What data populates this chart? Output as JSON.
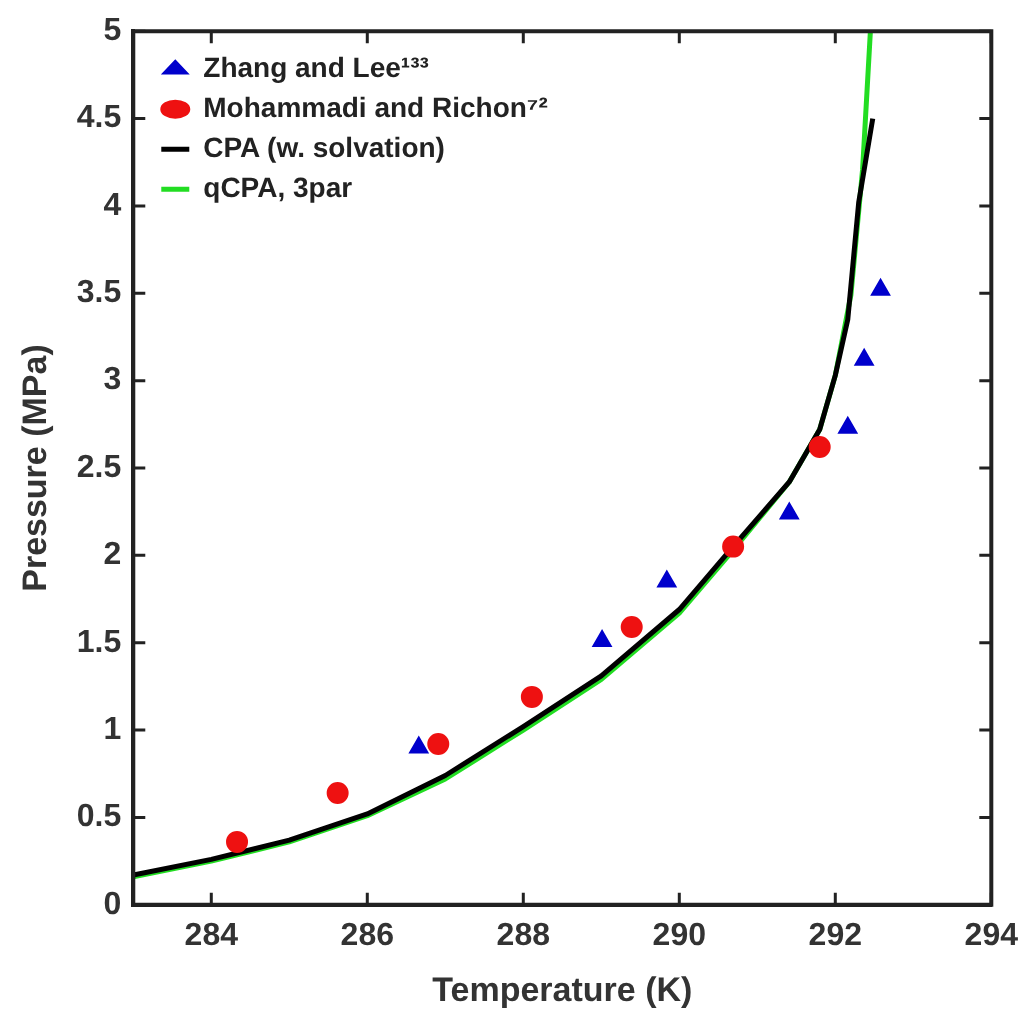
{
  "chart_data": {
    "type": "scatter",
    "xlabel": "Temperature (K)",
    "ylabel": "Pressure (MPa)",
    "xlim": [
      283,
      294
    ],
    "xticks": [
      284,
      286,
      288,
      290,
      292,
      294
    ],
    "ylim": [
      0,
      5
    ],
    "yticks": [
      0,
      0.5,
      1,
      1.5,
      2,
      2.5,
      3,
      3.5,
      4,
      4.5,
      5
    ],
    "grid": false,
    "legend": "top left",
    "series": [
      {
        "name": "Zhang and Lee¹³³",
        "type": "scatter",
        "marker": "triangle",
        "color": "#0000cc",
        "x": [
          286.66,
          289.01,
          289.84,
          291.41,
          292.16,
          292.37,
          292.58
        ],
        "values": [
          0.9,
          1.51,
          1.85,
          2.24,
          2.73,
          3.12,
          3.52
        ]
      },
      {
        "name": "Mohammadi and Richon⁷²",
        "type": "scatter",
        "marker": "circle",
        "color": "#ee1111",
        "x": [
          284.33,
          285.62,
          286.91,
          288.11,
          289.39,
          290.69,
          291.8
        ],
        "values": [
          0.36,
          0.64,
          0.92,
          1.19,
          1.59,
          2.05,
          2.62
        ]
      },
      {
        "name": "CPA (w. solvation)",
        "type": "line",
        "marker": "none",
        "line_style": "solid",
        "color": "#000000",
        "x": [
          283,
          284,
          285,
          286,
          287,
          288,
          289,
          290,
          290.69,
          291.41,
          291.8,
          292.0,
          292.16,
          292.3,
          292.48
        ],
        "values": [
          0.17,
          0.26,
          0.37,
          0.52,
          0.74,
          1.02,
          1.31,
          1.69,
          2.05,
          2.42,
          2.72,
          3.03,
          3.35,
          4.02,
          4.5
        ]
      },
      {
        "name": "qCPA, 3par",
        "type": "line",
        "marker": "none",
        "line_style": "solid",
        "color": "#22dd22",
        "x": [
          283,
          284,
          285,
          286,
          287,
          288,
          289,
          290,
          290.69,
          291.41,
          291.8,
          292.0,
          292.2,
          292.35,
          292.45
        ],
        "values": [
          0.16,
          0.25,
          0.36,
          0.51,
          0.72,
          1.0,
          1.29,
          1.67,
          2.03,
          2.42,
          2.72,
          3.03,
          3.49,
          4.21,
          5.0
        ]
      }
    ]
  }
}
